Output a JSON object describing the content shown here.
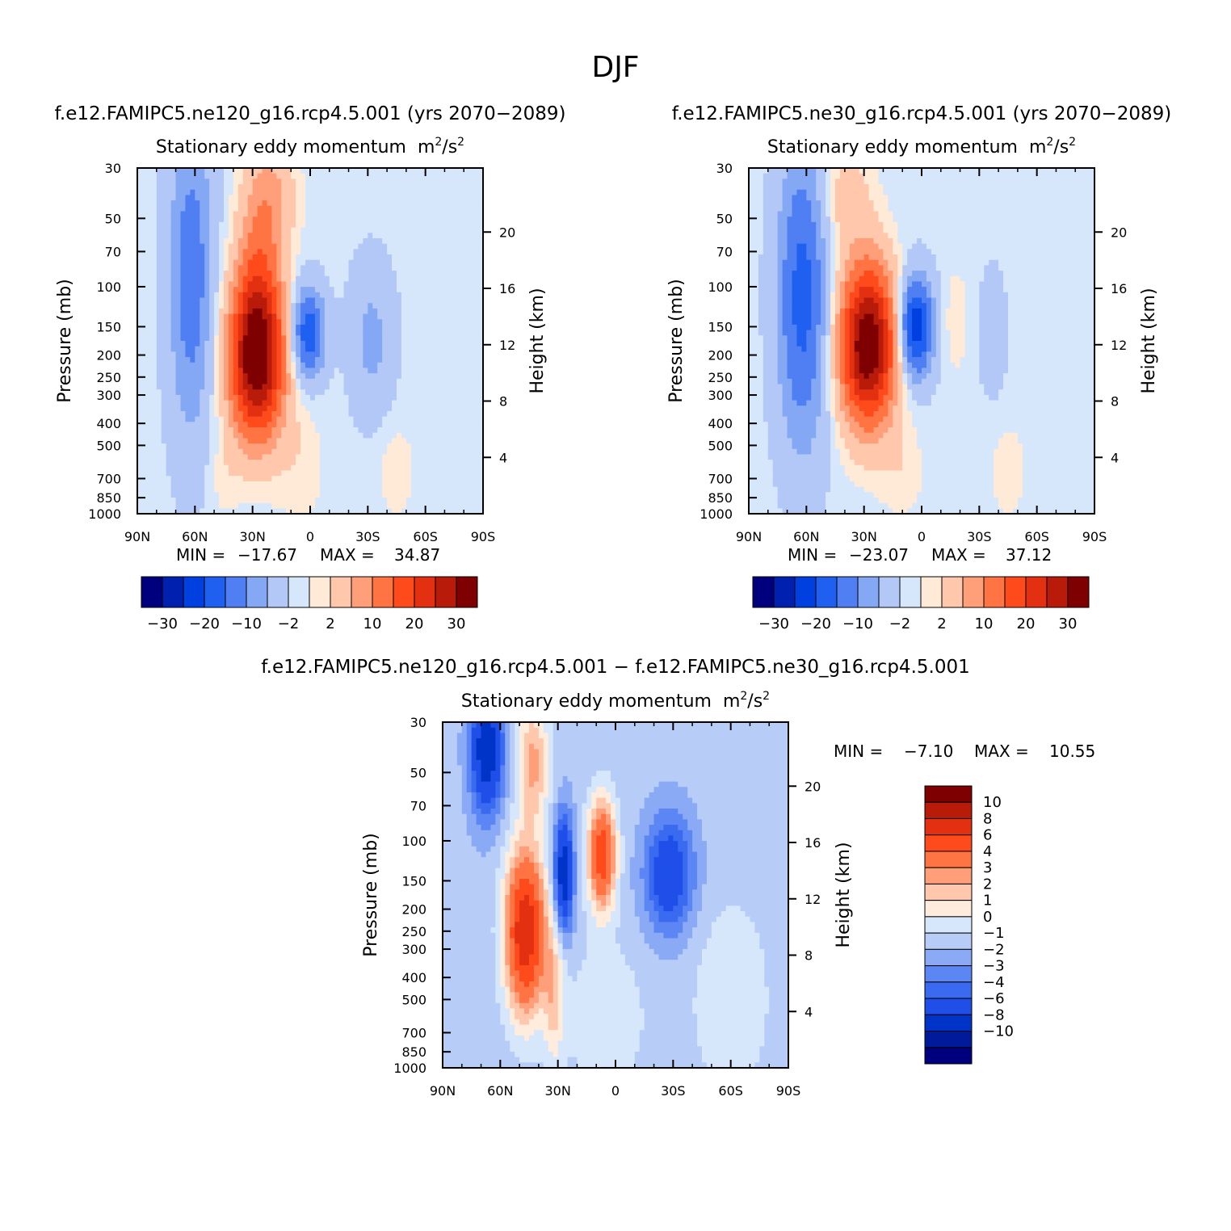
{
  "figure_title": "DJF",
  "palettes": {
    "main": [
      "#00007f",
      "#0020b0",
      "#0040e0",
      "#2060f0",
      "#4f7ff2",
      "#85a8f5",
      "#b3c8f7",
      "#d6e7fb",
      "#ffead8",
      "#ffc8ac",
      "#ff9f7a",
      "#ff7442",
      "#ff4a1c",
      "#e23010",
      "#b81b0a",
      "#7f0000"
    ],
    "diff": [
      "#00007f",
      "#001a9c",
      "#0033c7",
      "#1f4fe8",
      "#3a6af0",
      "#5b86f3",
      "#8aaaf6",
      "#b7cdf8",
      "#d6e7fb",
      "#ffecdc",
      "#ffc8ac",
      "#ff9f7a",
      "#ff7442",
      "#ff4a1c",
      "#e23010",
      "#b81b0a",
      "#7f0000"
    ]
  },
  "chart_data": [
    {
      "type": "heatmap",
      "id": "p1",
      "case_title": "f.e12.FAMIPC5.ne120_g16.rcp4.5.001 (yrs 2070−2089)",
      "title": "Stationary eddy momentum",
      "units_base": "m",
      "units_mid": "/s",
      "units_exp": "2",
      "ylabel": "Pressure (mb)",
      "ylabel_right": "Height (km)",
      "x_ticks": [
        "90N",
        "60N",
        "30N",
        "0",
        "30S",
        "60S",
        "90S"
      ],
      "y_ticks": [
        30,
        50,
        70,
        100,
        150,
        200,
        250,
        300,
        400,
        500,
        700,
        850,
        1000
      ],
      "height_ticks": [
        4,
        8,
        12,
        16,
        20
      ],
      "xlim": [
        90,
        -90
      ],
      "ylim": [
        1000,
        30
      ],
      "min_label": "MIN =",
      "min_value": "−17.67",
      "max_label": "MAX =",
      "max_value": "34.87",
      "colorbar_labels": [
        "−30",
        "−20",
        "−10",
        "−2",
        "2",
        "10",
        "20",
        "30"
      ],
      "blobs": [
        {
          "lat": 62,
          "p": 90,
          "v": -12,
          "rx": 8,
          "ry": 3.2
        },
        {
          "lat": 28,
          "p": 210,
          "v": 34.87,
          "rx": 10,
          "ry": 1.6
        },
        {
          "lat": 27,
          "p": 90,
          "v": 10,
          "rx": 8,
          "ry": 1.8
        },
        {
          "lat": 1,
          "p": 160,
          "v": -17.67,
          "rx": 6,
          "ry": 0.9
        },
        {
          "lat": -32,
          "p": 170,
          "v": -6,
          "rx": 8,
          "ry": 1.5
        },
        {
          "lat": 20,
          "p": 40,
          "v": 7,
          "rx": 9,
          "ry": 1.2
        },
        {
          "lat": 5,
          "p": 600,
          "v": 2.5,
          "rx": 9,
          "ry": 1.3
        },
        {
          "lat": -45,
          "p": 650,
          "v": 2.5,
          "rx": 7,
          "ry": 1.0
        },
        {
          "lat": 45,
          "p": 700,
          "v": 2,
          "rx": 6,
          "ry": 0.8
        }
      ],
      "background": -1.2
    },
    {
      "type": "heatmap",
      "id": "p2",
      "case_title": "f.e12.FAMIPC5.ne30_g16.rcp4.5.001 (yrs 2070−2089)",
      "title": "Stationary eddy momentum",
      "units_base": "m",
      "units_mid": "/s",
      "units_exp": "2",
      "ylabel": "Pressure (mb)",
      "ylabel_right": "Height (km)",
      "x_ticks": [
        "90N",
        "60N",
        "30N",
        "0",
        "30S",
        "60S",
        "90S"
      ],
      "y_ticks": [
        30,
        50,
        70,
        100,
        150,
        200,
        250,
        300,
        400,
        500,
        700,
        850,
        1000
      ],
      "height_ticks": [
        4,
        8,
        12,
        16,
        20
      ],
      "xlim": [
        90,
        -90
      ],
      "ylim": [
        1000,
        30
      ],
      "min_label": "MIN =",
      "min_value": "−23.07",
      "max_label": "MAX =",
      "max_value": "37.12",
      "colorbar_labels": [
        "−30",
        "−20",
        "−10",
        "−2",
        "2",
        "10",
        "20",
        "30"
      ],
      "blobs": [
        {
          "lat": 62,
          "p": 110,
          "v": -16,
          "rx": 9,
          "ry": 3.0
        },
        {
          "lat": 28,
          "p": 180,
          "v": 37.12,
          "rx": 10,
          "ry": 1.6
        },
        {
          "lat": 3,
          "p": 150,
          "v": -23.07,
          "rx": 6,
          "ry": 1.0
        },
        {
          "lat": 40,
          "p": 40,
          "v": 5,
          "rx": 10,
          "ry": 1.2
        },
        {
          "lat": -18,
          "p": 140,
          "v": 3,
          "rx": 4,
          "ry": 1.0
        },
        {
          "lat": -37,
          "p": 160,
          "v": -3,
          "rx": 5,
          "ry": 1.3
        },
        {
          "lat": -45,
          "p": 650,
          "v": 2.5,
          "rx": 7,
          "ry": 1.0
        },
        {
          "lat": 10,
          "p": 650,
          "v": 2.5,
          "rx": 8,
          "ry": 1.0
        }
      ],
      "background": -1.2
    },
    {
      "type": "heatmap",
      "id": "p3",
      "case_title": "f.e12.FAMIPC5.ne120_g16.rcp4.5.001 − f.e12.FAMIPC5.ne30_g16.rcp4.5.001",
      "title": "Stationary eddy momentum",
      "units_base": "m",
      "units_mid": "/s",
      "units_exp": "2",
      "ylabel": "Pressure (mb)",
      "ylabel_right": "Height (km)",
      "x_ticks": [
        "90N",
        "60N",
        "30N",
        "0",
        "30S",
        "60S",
        "90S"
      ],
      "y_ticks": [
        30,
        50,
        70,
        100,
        150,
        200,
        250,
        300,
        400,
        500,
        700,
        850,
        1000
      ],
      "height_ticks": [
        4,
        8,
        12,
        16,
        20
      ],
      "xlim": [
        90,
        -90
      ],
      "ylim": [
        1000,
        30
      ],
      "min_label": "MIN =",
      "min_value": "−7.10",
      "max_label": "MAX =",
      "max_value": "10.55",
      "colorbar_labels": [
        "10",
        "8",
        "6",
        "4",
        "3",
        "2",
        "1",
        "0",
        "−1",
        "−2",
        "−3",
        "−4",
        "−6",
        "−8",
        "−10"
      ],
      "blobs": [
        {
          "lat": 67,
          "p": 40,
          "v": -7.1,
          "rx": 6,
          "ry": 1.3
        },
        {
          "lat": 47,
          "p": 250,
          "v": 10.55,
          "rx": 7,
          "ry": 1.6
        },
        {
          "lat": 43,
          "p": 45,
          "v": 4,
          "rx": 6,
          "ry": 1.2
        },
        {
          "lat": 27,
          "p": 140,
          "v": -7,
          "rx": 3.5,
          "ry": 1.2
        },
        {
          "lat": 7,
          "p": 115,
          "v": 8,
          "rx": 5,
          "ry": 1.1
        },
        {
          "lat": -28,
          "p": 140,
          "v": -5,
          "rx": 9,
          "ry": 1.2
        },
        {
          "lat": 32,
          "p": 450,
          "v": 3,
          "rx": 4,
          "ry": 1.5
        },
        {
          "lat": 5,
          "p": 600,
          "v": 1.5,
          "rx": 14,
          "ry": 1.5
        },
        {
          "lat": -60,
          "p": 500,
          "v": 1.5,
          "rx": 14,
          "ry": 2.0
        }
      ],
      "background": -0.6
    }
  ]
}
